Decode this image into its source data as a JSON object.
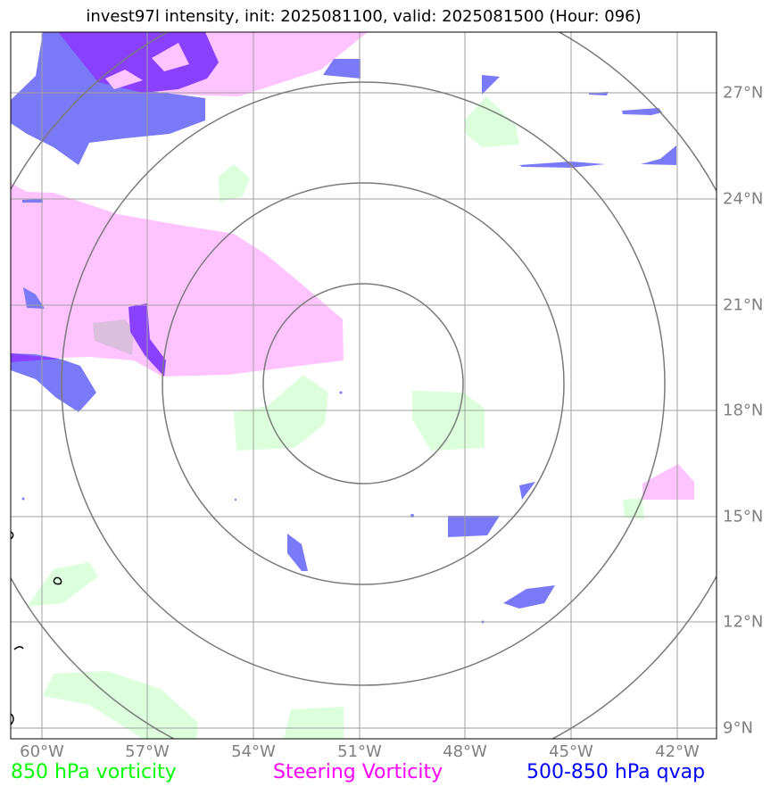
{
  "title": "invest97l intensity, init: 2025081100, valid: 2025081500 (Hour: 096)",
  "lon_labels": [
    "60°W",
    "57°W",
    "54°W",
    "51°W",
    "48°W",
    "45°W",
    "42°W"
  ],
  "lat_labels": [
    "27°N",
    "24°N",
    "21°N",
    "18°N",
    "15°N",
    "12°N",
    "9°N"
  ],
  "legend": [
    {
      "label": "850 hPa vorticity",
      "color": "#00ff00"
    },
    {
      "label": "Steering Vorticity",
      "color": "#ff00ff"
    },
    {
      "label": "500-850 hPa qvap",
      "color": "#0000ff"
    }
  ],
  "colors": {
    "vorticity_fill": "#dcffdc",
    "steering_fill": "#ffc4ff",
    "qvap_fill": "#7a7af8",
    "qvap_overlap": "#8a40ff",
    "grid": "#a0a0a0",
    "range_rings": "#7a7a7a"
  }
}
